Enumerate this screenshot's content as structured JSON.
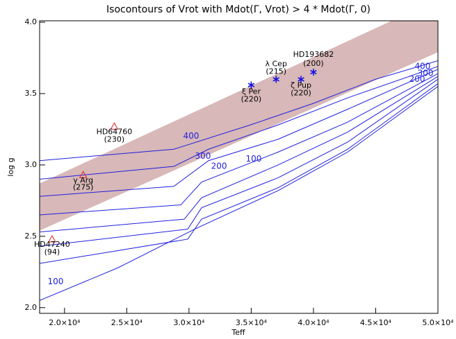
{
  "chart_data": {
    "type": "contour",
    "title": "Isocontours of Vrot with Mdot(Γ, Vrot) > 4 * Mdot(Γ, 0)",
    "x_label": "Teff",
    "y_label": "log g",
    "xlim": [
      18000,
      50000
    ],
    "ylim": [
      1.96,
      4.01
    ],
    "xticks": [
      {
        "value": 20000,
        "label": "2.0×10⁴"
      },
      {
        "value": 25000,
        "label": "2.5×10⁴"
      },
      {
        "value": 30000,
        "label": "3.0×10⁴"
      },
      {
        "value": 35000,
        "label": "3.5×10⁴"
      },
      {
        "value": 40000,
        "label": "4.0×10⁴"
      },
      {
        "value": 45000,
        "label": "4.5×10⁴"
      },
      {
        "value": 50000,
        "label": "5.0×10⁴"
      }
    ],
    "yticks": [
      {
        "value": 2,
        "label": "2.0"
      },
      {
        "value": 2.5,
        "label": "2.5"
      },
      {
        "value": 3,
        "label": "3.0"
      },
      {
        "value": 3.5,
        "label": "3.5"
      },
      {
        "value": 4,
        "label": "4.0"
      }
    ],
    "band": {
      "color": "#d8b8b8",
      "x": [
        18000,
        50000
      ],
      "lower": [
        2.54,
        3.79
      ],
      "upper": [
        2.87,
        4.16
      ]
    },
    "contour_color": "#1f1fe0",
    "contours": [
      {
        "x": [
          18000,
          28780,
          34920,
          39950,
          44980,
          50000
        ],
        "values": [
          3.03,
          3.11,
          3.28,
          3.43,
          3.6,
          3.73
        ]
      },
      {
        "x": [
          18000,
          28780,
          31570,
          37160,
          42740,
          50000
        ],
        "values": [
          2.9,
          2.99,
          3.11,
          3.28,
          3.47,
          3.69
        ]
      },
      {
        "x": [
          18000,
          28780,
          31570,
          37160,
          42740,
          50000
        ],
        "values": [
          2.78,
          2.85,
          3.03,
          3.18,
          3.39,
          3.67
        ]
      },
      {
        "x": [
          18000,
          29340,
          31010,
          37160,
          42740,
          50000
        ],
        "values": [
          2.65,
          2.72,
          2.88,
          3.09,
          3.3,
          3.64
        ]
      },
      {
        "x": [
          18000,
          29620,
          31010,
          37160,
          42740,
          50000
        ],
        "values": [
          2.53,
          2.62,
          2.77,
          3.0,
          3.23,
          3.62
        ]
      },
      {
        "x": [
          18000,
          29900,
          31010,
          37160,
          42740,
          50000
        ],
        "values": [
          2.43,
          2.55,
          2.7,
          2.91,
          3.16,
          3.6
        ]
      },
      {
        "x": [
          18000,
          29900,
          31010,
          37160,
          42740,
          50000
        ],
        "values": [
          2.31,
          2.48,
          2.62,
          2.84,
          3.11,
          3.57
        ]
      },
      {
        "x": [
          18000,
          24310,
          30450,
          37160,
          42740,
          50000
        ],
        "values": [
          2.05,
          2.28,
          2.55,
          2.82,
          3.09,
          3.55
        ]
      }
    ],
    "contour_labels": [
      {
        "text": "400",
        "x": 30170,
        "y": 3.2
      },
      {
        "text": "300",
        "x": 31120,
        "y": 3.06
      },
      {
        "text": "200",
        "x": 32410,
        "y": 2.99
      },
      {
        "text": "100",
        "x": 35200,
        "y": 3.04
      },
      {
        "text": "100",
        "x": 19280,
        "y": 2.18
      },
      {
        "text": "400",
        "x": 48770,
        "y": 3.69
      },
      {
        "text": "300",
        "x": 49000,
        "y": 3.64
      },
      {
        "text": "200",
        "x": 48330,
        "y": 3.6
      }
    ],
    "stars": [
      {
        "marker": "triangle",
        "color": "#e02020",
        "name": "HD64760",
        "vrot": "(230)",
        "x": 24000,
        "y": 3.27
      },
      {
        "marker": "triangle",
        "color": "#e02020",
        "name": "γ Arg",
        "vrot": "(275)",
        "x": 21500,
        "y": 2.93
      },
      {
        "marker": "triangle",
        "color": "#e02020",
        "name": "HD47240",
        "vrot": "(94)",
        "x": 19000,
        "y": 2.48
      },
      {
        "marker": "asterisk",
        "color": "#1010e0",
        "name": "ξ Per",
        "vrot": "(220)",
        "x": 35000,
        "y": 3.56
      },
      {
        "marker": "asterisk",
        "color": "#1010e0",
        "name": "λ Cep",
        "vrot": "(215)",
        "x": 37000,
        "y": 3.6
      },
      {
        "marker": "asterisk",
        "color": "#1010e0",
        "name": "ζ Pup",
        "vrot": "(220)",
        "x": 39000,
        "y": 3.6
      },
      {
        "marker": "asterisk",
        "color": "#1010e0",
        "name": "HD193682",
        "vrot": "(200)",
        "x": 40000,
        "y": 3.65
      }
    ]
  }
}
